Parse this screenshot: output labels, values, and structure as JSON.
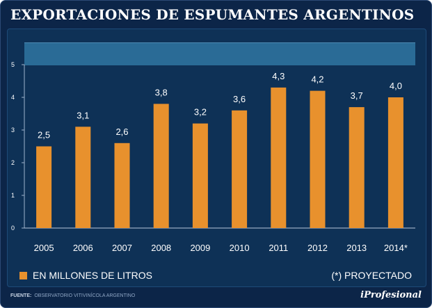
{
  "chart_data": {
    "type": "bar",
    "title": "EXPORTACIONES DE ESPUMANTES ARGENTINOS",
    "categories": [
      "2005",
      "2006",
      "2007",
      "2008",
      "2009",
      "2010",
      "2011",
      "2012",
      "2013",
      "2014*"
    ],
    "values": [
      2.5,
      3.1,
      2.6,
      3.8,
      3.2,
      3.6,
      4.3,
      4.2,
      3.7,
      4.0
    ],
    "value_labels": [
      "2,5",
      "3,1",
      "2,6",
      "3,8",
      "3,2",
      "3,6",
      "4,3",
      "4,2",
      "3,7",
      "4,0"
    ],
    "ylim": [
      0,
      5
    ],
    "yticks": [
      "0",
      "1",
      "2",
      "3",
      "4",
      "5"
    ],
    "xlabel": "",
    "ylabel": "",
    "legend": "EN MILLONES DE LITROS",
    "note": "(*) PROYECTADO",
    "bar_color": "#e8912d",
    "grid": false
  },
  "footer": {
    "label": "FUENTE:",
    "source": "OBSERVATORIO VITIVINÍCOLA ARGENTINO"
  },
  "brand": "iProfesional",
  "colors": {
    "background": "#0c2548",
    "panel": "#0e3156",
    "accent": "#e8912d"
  }
}
